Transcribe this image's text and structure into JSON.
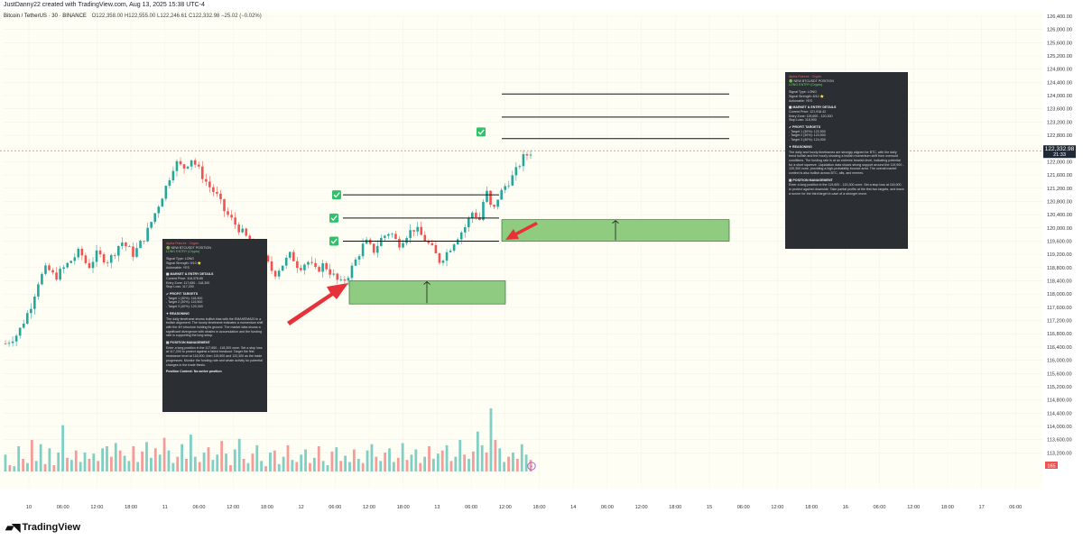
{
  "header": {
    "credit": "JustDanny22 created with TradingView.com, Aug 13, 2025 15:38 UTC-4",
    "symbol": "Bitcoin / TetherUS · 30 · BINANCE",
    "ohlc": "O122,358.00  H122,555.00  L122,246.61  C122,332.98  −25.02 (−0.02%)"
  },
  "footer": {
    "brand": "TradingView"
  },
  "price_label": {
    "value": "122,332.98",
    "countdown": "21:33"
  },
  "volume_label": "165",
  "colors": {
    "up": "#26a69a",
    "down": "#ef5350",
    "box": "#8fcc82",
    "arrow": "#e8323a",
    "check": "#2fc26b",
    "background": "#fffef5",
    "panel": "#2b2e33"
  },
  "chart_data": {
    "type": "candlestick",
    "instrument": "Bitcoin / TetherUS",
    "timeframe": "30",
    "exchange": "BINANCE",
    "ylim": [
      112800,
      126400
    ],
    "y_ticks": [
      "126,400.00",
      "126,000.00",
      "125,600.00",
      "125,200.00",
      "124,800.00",
      "124,400.00",
      "124,000.00",
      "123,600.00",
      "123,200.00",
      "122,800.00",
      "122,400.00",
      "122,000.00",
      "121,600.00",
      "121,200.00",
      "120,800.00",
      "120,400.00",
      "120,000.00",
      "119,600.00",
      "119,200.00",
      "118,800.00",
      "118,400.00",
      "118,000.00",
      "117,600.00",
      "117,200.00",
      "116,800.00",
      "116,400.00",
      "116,000.00",
      "115,600.00",
      "115,200.00",
      "114,800.00",
      "114,400.00",
      "114,000.00",
      "113,600.00",
      "113,200.00"
    ],
    "x_ticks": [
      "10",
      "06:00",
      "12:00",
      "18:00",
      "11",
      "06:00",
      "12:00",
      "18:00",
      "12",
      "06:00",
      "12:00",
      "18:00",
      "13",
      "06:00",
      "12:00",
      "18:00",
      "14",
      "06:00",
      "12:00",
      "18:00",
      "15",
      "06:00",
      "12:00",
      "18:00",
      "16",
      "06:00",
      "12:00",
      "18:00",
      "17",
      "06:00"
    ],
    "price_path": [
      [
        0,
        116500
      ],
      [
        3,
        116800
      ],
      [
        6,
        117600
      ],
      [
        8,
        118400
      ],
      [
        10,
        118800
      ],
      [
        12,
        118500
      ],
      [
        15,
        118900
      ],
      [
        18,
        119300
      ],
      [
        20,
        118800
      ],
      [
        22,
        119200
      ],
      [
        25,
        119000
      ],
      [
        28,
        119600
      ],
      [
        31,
        119200
      ],
      [
        34,
        119800
      ],
      [
        37,
        120700
      ],
      [
        39,
        121300
      ],
      [
        41,
        122000
      ],
      [
        43,
        121800
      ],
      [
        45,
        122100
      ],
      [
        47,
        121700
      ],
      [
        49,
        121300
      ],
      [
        51,
        121000
      ],
      [
        53,
        120500
      ],
      [
        55,
        120200
      ],
      [
        57,
        119900
      ],
      [
        59,
        119600
      ],
      [
        61,
        119300
      ],
      [
        63,
        119000
      ],
      [
        65,
        118600
      ],
      [
        67,
        118900
      ],
      [
        69,
        119200
      ],
      [
        71,
        118800
      ],
      [
        73,
        119000
      ],
      [
        75,
        118700
      ],
      [
        77,
        118900
      ],
      [
        79,
        118600
      ],
      [
        81,
        118300
      ],
      [
        83,
        118600
      ],
      [
        85,
        119100
      ],
      [
        87,
        119600
      ],
      [
        89,
        119300
      ],
      [
        91,
        119700
      ],
      [
        93,
        119900
      ],
      [
        95,
        119500
      ],
      [
        97,
        119800
      ],
      [
        99,
        120000
      ],
      [
        101,
        119700
      ],
      [
        103,
        119400
      ],
      [
        105,
        119000
      ],
      [
        107,
        119300
      ],
      [
        109,
        119700
      ],
      [
        111,
        120000
      ],
      [
        113,
        120500
      ],
      [
        115,
        120200
      ],
      [
        116,
        121300
      ],
      [
        117,
        120700
      ],
      [
        118,
        120500
      ],
      [
        119,
        120900
      ],
      [
        121,
        121300
      ],
      [
        123,
        121600
      ],
      [
        125,
        122100
      ],
      [
        127,
        122300
      ]
    ],
    "volume": [
      16,
      6,
      5,
      24,
      12,
      8,
      30,
      10,
      26,
      7,
      22,
      6,
      18,
      44,
      13,
      11,
      20,
      9,
      18,
      12,
      17,
      10,
      22,
      24,
      14,
      27,
      20,
      15,
      10,
      24,
      9,
      19,
      28,
      13,
      22,
      16,
      32,
      20,
      8,
      14,
      26,
      12,
      35,
      14,
      9,
      18,
      23,
      11,
      16,
      29,
      17,
      6,
      21,
      31,
      12,
      8,
      17,
      25,
      10,
      5,
      18,
      20,
      7,
      14,
      25,
      11,
      9,
      16,
      21,
      8,
      13,
      24,
      10,
      6,
      19,
      23,
      10,
      15,
      9,
      21,
      12,
      8,
      20,
      26,
      14,
      10,
      18,
      22,
      9,
      13,
      27,
      11,
      16,
      21,
      8,
      14,
      24,
      12,
      17,
      20,
      25,
      10,
      14,
      30,
      16,
      12,
      19,
      38,
      25,
      18,
      60,
      30,
      22,
      9,
      14,
      18,
      12,
      26,
      16,
      11
    ],
    "levels": [
      {
        "name": "entry-line-1",
        "price": 121000
      },
      {
        "name": "entry-line-2",
        "price": 120300
      },
      {
        "name": "entry-line-3",
        "price": 119600
      },
      {
        "name": "target-line-1",
        "price": 122700
      },
      {
        "name": "target-line-2",
        "price": 123350
      },
      {
        "name": "target-line-3",
        "price": 124050
      }
    ],
    "zones": [
      {
        "name": "entry-zone-1",
        "from": 117700,
        "to": 118400
      },
      {
        "name": "entry-zone-2",
        "from": 119600,
        "to": 120250
      }
    ]
  },
  "panel_left": {
    "title": "Alpha Futures · Crypto",
    "position": "NEW BTCUSDT POSITION",
    "position_sub": "LONG ENTRY (Crypto)",
    "lines1": [
      "Signal Type: LONG",
      "Signal Strength: 9/10 ⭐",
      "Actionable: YES"
    ],
    "market_head": "MARKET & ENTRY DETAILS",
    "market_lines": [
      "Current Price: 118,378.85",
      "Entry Zone: 117,650 - 118,300",
      "Stop Loss: 117,200"
    ],
    "profit_head": "PROFIT TARGETS",
    "profit_lines": [
      "- Target 1 (30%): 118,900",
      "- Target 2 (30%): 119,500",
      "- Target 3 (40%): 120,300"
    ],
    "reason_head": "REASONING",
    "reason_text": "The daily timeframe shows bullish bias with the EMA9/EMA20 in a bullish alignment. The hourly timeframe indicates a momentum shift with the 4H structure holding its ground. The market data shows a significant divergence with whales in accumulation and the funding rate is supporting the long setup.",
    "mgmt_head": "POSITION MANAGEMENT",
    "mgmt_text": "Enter a long position in the 117,650 - 118,300 zone. Set a stop loss at 117,200 to protect against a failed breakout. Target the first resistance level at 118,900, then 119,500 and 120,300 as the trade progresses. Monitor the funding rate and whale activity for potential changes in the trade thesis.",
    "context": "Position Context: No active position"
  },
  "panel_right": {
    "title": "Alpha Futures · Crypto",
    "position": "NEW BTCUSDT POSITION",
    "position_sub": "LONG ENTRY (Crypto)",
    "lines1": [
      "Signal Type: LONG",
      "Signal Strength: 8/10 ⭐",
      "Actionable: YES"
    ],
    "market_head": "MARKET & ENTRY DETAILS",
    "market_lines": [
      "Current Price: 121,918.42",
      "Entry Zone: 119,600 - 120,300",
      "Stop Loss: 118,900"
    ],
    "profit_head": "PROFIT TARGETS",
    "profit_lines": [
      "- Target 1 (30%): 122,500",
      "- Target 2 (30%): 123,500",
      "- Target 3 (40%): 124,000"
    ],
    "reason_head": "REASONING",
    "reason_text": "The daily and hourly timeframes are strongly aligned for BTC, with the daily trend bullish and the hourly showing a bullish momentum shift from oversold conditions. The funding rate is at an extreme bearish level, indicating potential for a short squeeze. Liquidation data shows strong support around the 119,900 - 120,300 zone, providing a high-probability bounce area. The overall market context is also bullish across BTC, alts, and memes.",
    "mgmt_head": "POSITION MANAGEMENT",
    "mgmt_text": "Enter a long position in the 119,600 - 120,300 zone. Set a stop loss at 118,900 to protect against downside. Take partial profits at the first two targets, and leave a runner for the third target in case of a stronger move."
  }
}
